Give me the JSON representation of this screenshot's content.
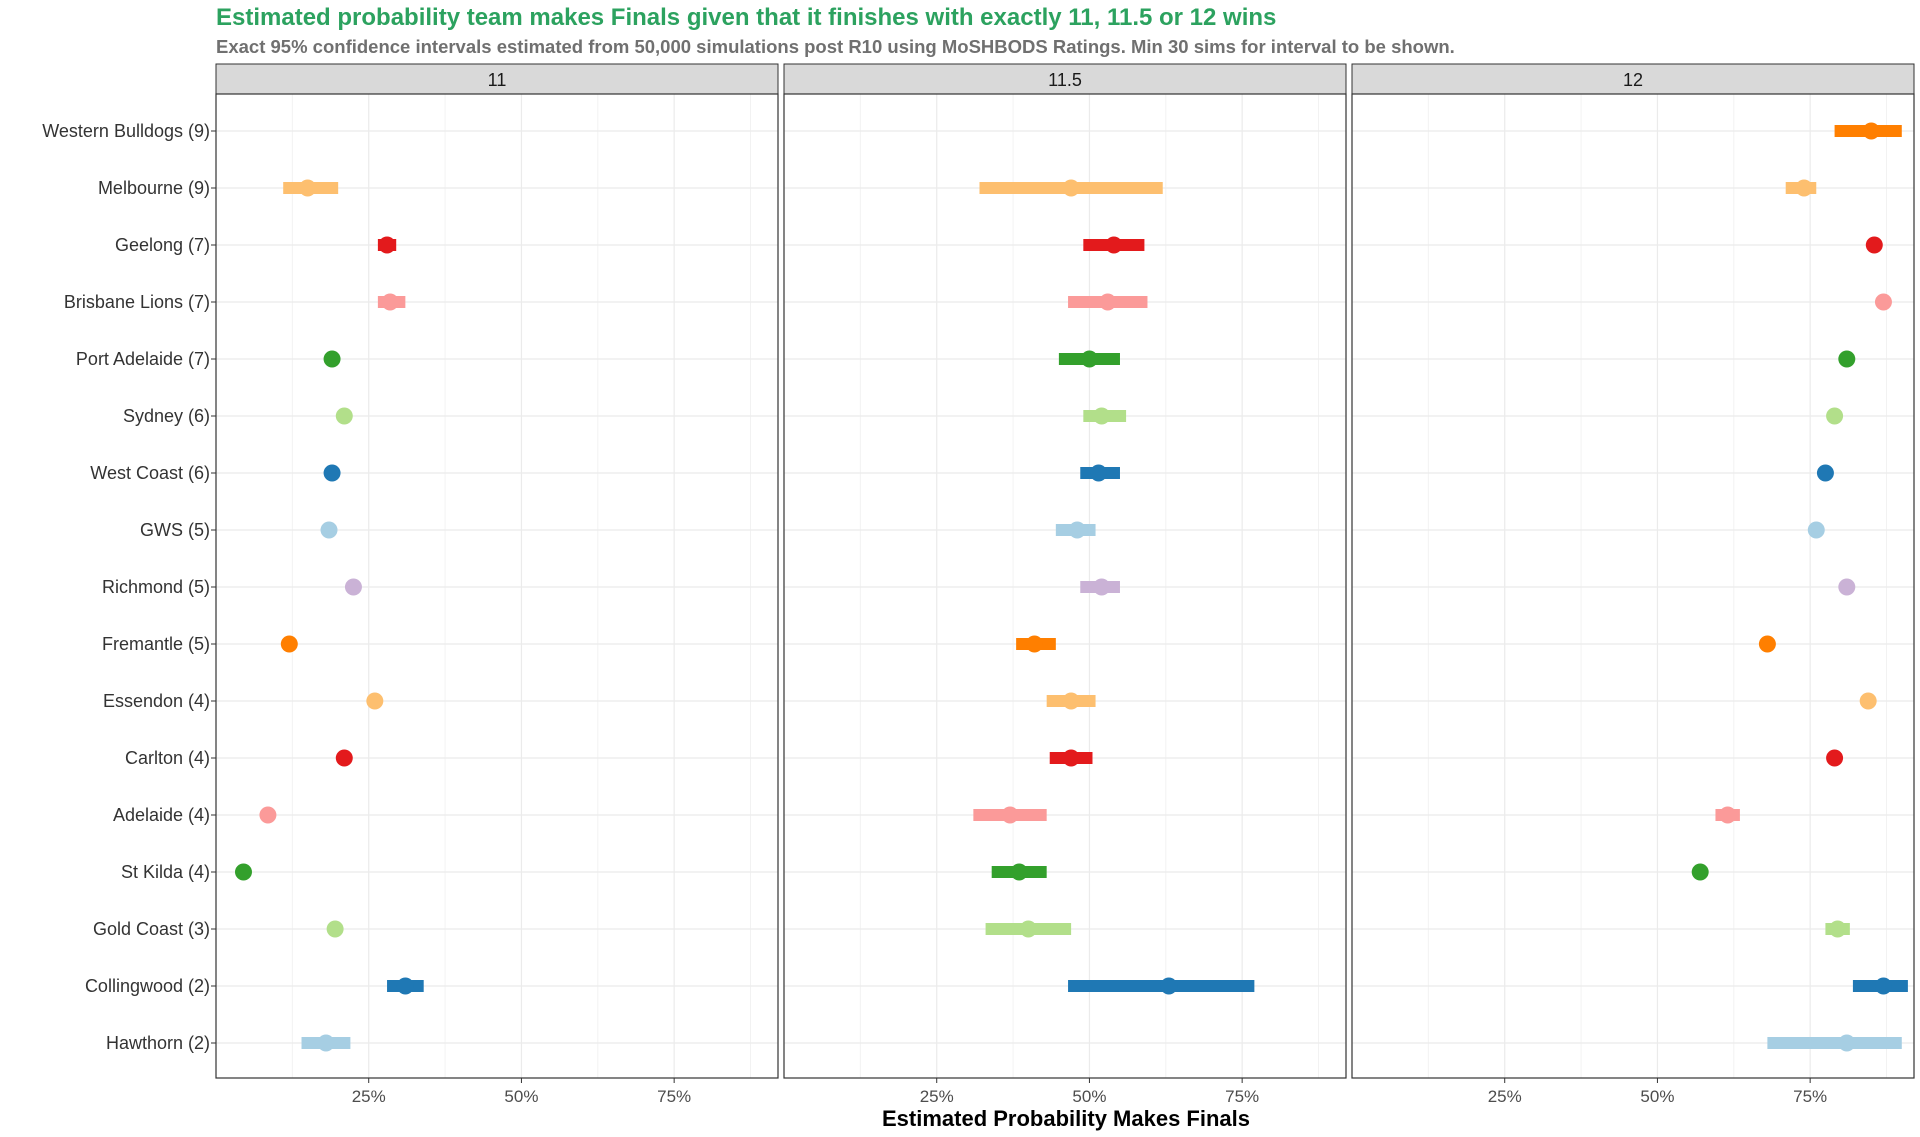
{
  "title": "Estimated probability team makes Finals given that it finishes with exactly 11, 11.5 or 12 wins",
  "subtitle": "Exact 95% confidence intervals estimated from 50,000 simulations post R10 using MoSHBODS Ratings. Min 30 sims for interval to be shown.",
  "chart_data": {
    "type": "scatter",
    "xlabel": "Estimated Probability Makes Finals",
    "xlim": [
      0,
      0.92
    ],
    "x_ticks": [
      0.25,
      0.5,
      0.75
    ],
    "x_tick_labels": [
      "25%",
      "50%",
      "75%"
    ],
    "grid": true,
    "teams": [
      {
        "label": "Western Bulldogs (9)",
        "color": "#ff7f00"
      },
      {
        "label": "Melbourne (9)",
        "color": "#fdbf6f"
      },
      {
        "label": "Geelong (7)",
        "color": "#e31a1c"
      },
      {
        "label": "Brisbane Lions (7)",
        "color": "#fb9a99"
      },
      {
        "label": "Port Adelaide (7)",
        "color": "#33a02c"
      },
      {
        "label": "Sydney (6)",
        "color": "#b2df8a"
      },
      {
        "label": "West Coast (6)",
        "color": "#1f78b4"
      },
      {
        "label": "GWS (5)",
        "color": "#a6cee3"
      },
      {
        "label": "Richmond (5)",
        "color": "#cab2d6"
      },
      {
        "label": "Fremantle (5)",
        "color": "#ff7f00"
      },
      {
        "label": "Essendon (4)",
        "color": "#fdbf6f"
      },
      {
        "label": "Carlton (4)",
        "color": "#e31a1c"
      },
      {
        "label": "Adelaide (4)",
        "color": "#fb9a99"
      },
      {
        "label": "St Kilda (4)",
        "color": "#33a02c"
      },
      {
        "label": "Gold Coast (3)",
        "color": "#b2df8a"
      },
      {
        "label": "Collingwood (2)",
        "color": "#1f78b4"
      },
      {
        "label": "Hawthorn (2)",
        "color": "#a6cee3"
      }
    ],
    "panels": [
      {
        "label": "11",
        "points": [
          {
            "team": 1,
            "p": 0.15,
            "lo": 0.11,
            "hi": 0.2
          },
          {
            "team": 2,
            "p": 0.28,
            "lo": 0.265,
            "hi": 0.295
          },
          {
            "team": 3,
            "p": 0.285,
            "lo": 0.265,
            "hi": 0.31
          },
          {
            "team": 4,
            "p": 0.19
          },
          {
            "team": 5,
            "p": 0.21
          },
          {
            "team": 6,
            "p": 0.19
          },
          {
            "team": 7,
            "p": 0.185
          },
          {
            "team": 8,
            "p": 0.225
          },
          {
            "team": 9,
            "p": 0.12
          },
          {
            "team": 10,
            "p": 0.26
          },
          {
            "team": 11,
            "p": 0.21
          },
          {
            "team": 12,
            "p": 0.085
          },
          {
            "team": 13,
            "p": 0.045
          },
          {
            "team": 14,
            "p": 0.195
          },
          {
            "team": 15,
            "p": 0.31,
            "lo": 0.28,
            "hi": 0.34
          },
          {
            "team": 16,
            "p": 0.18,
            "lo": 0.14,
            "hi": 0.22
          }
        ]
      },
      {
        "label": "11.5",
        "points": [
          {
            "team": 1,
            "p": 0.47,
            "lo": 0.32,
            "hi": 0.62
          },
          {
            "team": 2,
            "p": 0.54,
            "lo": 0.49,
            "hi": 0.59
          },
          {
            "team": 3,
            "p": 0.53,
            "lo": 0.465,
            "hi": 0.595
          },
          {
            "team": 4,
            "p": 0.5,
            "lo": 0.45,
            "hi": 0.55
          },
          {
            "team": 5,
            "p": 0.52,
            "lo": 0.49,
            "hi": 0.56
          },
          {
            "team": 6,
            "p": 0.515,
            "lo": 0.485,
            "hi": 0.55
          },
          {
            "team": 7,
            "p": 0.48,
            "lo": 0.445,
            "hi": 0.51
          },
          {
            "team": 8,
            "p": 0.52,
            "lo": 0.485,
            "hi": 0.55
          },
          {
            "team": 9,
            "p": 0.41,
            "lo": 0.38,
            "hi": 0.445
          },
          {
            "team": 10,
            "p": 0.47,
            "lo": 0.43,
            "hi": 0.51
          },
          {
            "team": 11,
            "p": 0.47,
            "lo": 0.435,
            "hi": 0.505
          },
          {
            "team": 12,
            "p": 0.37,
            "lo": 0.31,
            "hi": 0.43
          },
          {
            "team": 13,
            "p": 0.385,
            "lo": 0.34,
            "hi": 0.43
          },
          {
            "team": 14,
            "p": 0.4,
            "lo": 0.33,
            "hi": 0.47
          },
          {
            "team": 15,
            "p": 0.63,
            "lo": 0.465,
            "hi": 0.77
          }
        ]
      },
      {
        "label": "12",
        "points": [
          {
            "team": 0,
            "p": 0.85,
            "lo": 0.79,
            "hi": 0.9
          },
          {
            "team": 1,
            "p": 0.74,
            "lo": 0.71,
            "hi": 0.76
          },
          {
            "team": 2,
            "p": 0.855
          },
          {
            "team": 3,
            "p": 0.87
          },
          {
            "team": 4,
            "p": 0.81
          },
          {
            "team": 5,
            "p": 0.79
          },
          {
            "team": 6,
            "p": 0.775
          },
          {
            "team": 7,
            "p": 0.76
          },
          {
            "team": 8,
            "p": 0.81
          },
          {
            "team": 9,
            "p": 0.68
          },
          {
            "team": 10,
            "p": 0.845
          },
          {
            "team": 11,
            "p": 0.79
          },
          {
            "team": 12,
            "p": 0.615,
            "lo": 0.595,
            "hi": 0.635
          },
          {
            "team": 13,
            "p": 0.57
          },
          {
            "team": 14,
            "p": 0.795,
            "lo": 0.775,
            "hi": 0.815
          },
          {
            "team": 15,
            "p": 0.87,
            "lo": 0.82,
            "hi": 0.91
          },
          {
            "team": 16,
            "p": 0.81,
            "lo": 0.68,
            "hi": 0.9
          }
        ]
      }
    ]
  }
}
